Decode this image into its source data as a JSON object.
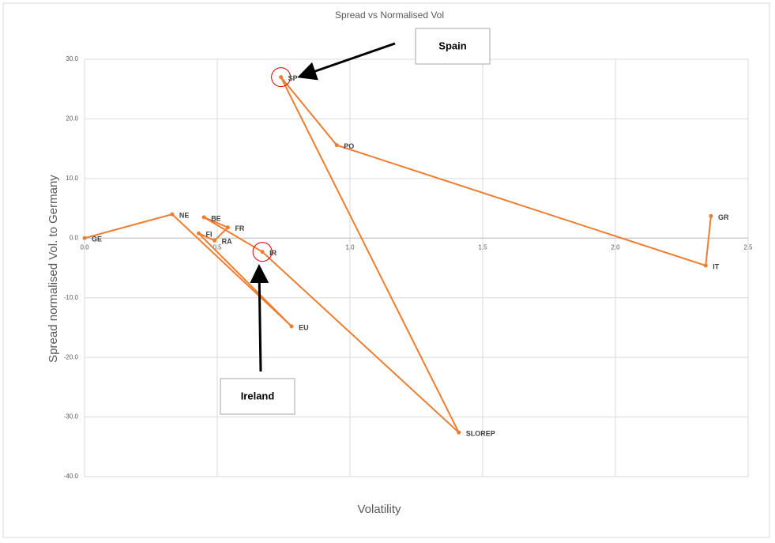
{
  "chart_data": {
    "type": "scatter",
    "title": "Spread vs Normalised Vol",
    "x_label": "Volatility",
    "y_label": "Spread  normalised Vol. to Germany",
    "xlim": [
      0,
      2.5
    ],
    "ylim": [
      -40,
      30
    ],
    "xticks": [
      {
        "value": 0,
        "label": "0.0"
      },
      {
        "value": 0.5,
        "label": "0.5"
      },
      {
        "value": 1,
        "label": "1.0"
      },
      {
        "value": 1.5,
        "label": "1.5"
      },
      {
        "value": 2,
        "label": "2.0"
      },
      {
        "value": 2.5,
        "label": "2.5"
      }
    ],
    "yticks": [
      {
        "value": 30,
        "label": "30.0"
      },
      {
        "value": 20,
        "label": "20.0"
      },
      {
        "value": 10,
        "label": "10.0"
      },
      {
        "value": 0,
        "label": "0.0"
      },
      {
        "value": -10,
        "label": "-10.0"
      },
      {
        "value": -20,
        "label": "-20.0"
      },
      {
        "value": -30,
        "label": "-30.0"
      },
      {
        "value": -40,
        "label": "-40.0"
      }
    ],
    "grid": true,
    "series": [
      {
        "color": "#ed7d31",
        "labels": [
          "GE",
          "NE",
          "EU",
          "FI",
          "RA",
          "FR",
          "BE",
          "IR",
          "SLOREP",
          "SP",
          "PO",
          "IT",
          "GR"
        ],
        "x": [
          0,
          0.33,
          0.78,
          0.43,
          0.49,
          0.54,
          0.45,
          0.67,
          1.41,
          0.74,
          0.95,
          2.34,
          2.36
        ],
        "values": [
          0,
          4.0,
          -14.8,
          0.8,
          -0.4,
          1.8,
          3.5,
          -2.3,
          -32.6,
          27.0,
          15.6,
          -4.6,
          3.7
        ]
      }
    ],
    "annotations": [
      {
        "text": "Spain"
      },
      {
        "text": "Ireland"
      }
    ]
  }
}
